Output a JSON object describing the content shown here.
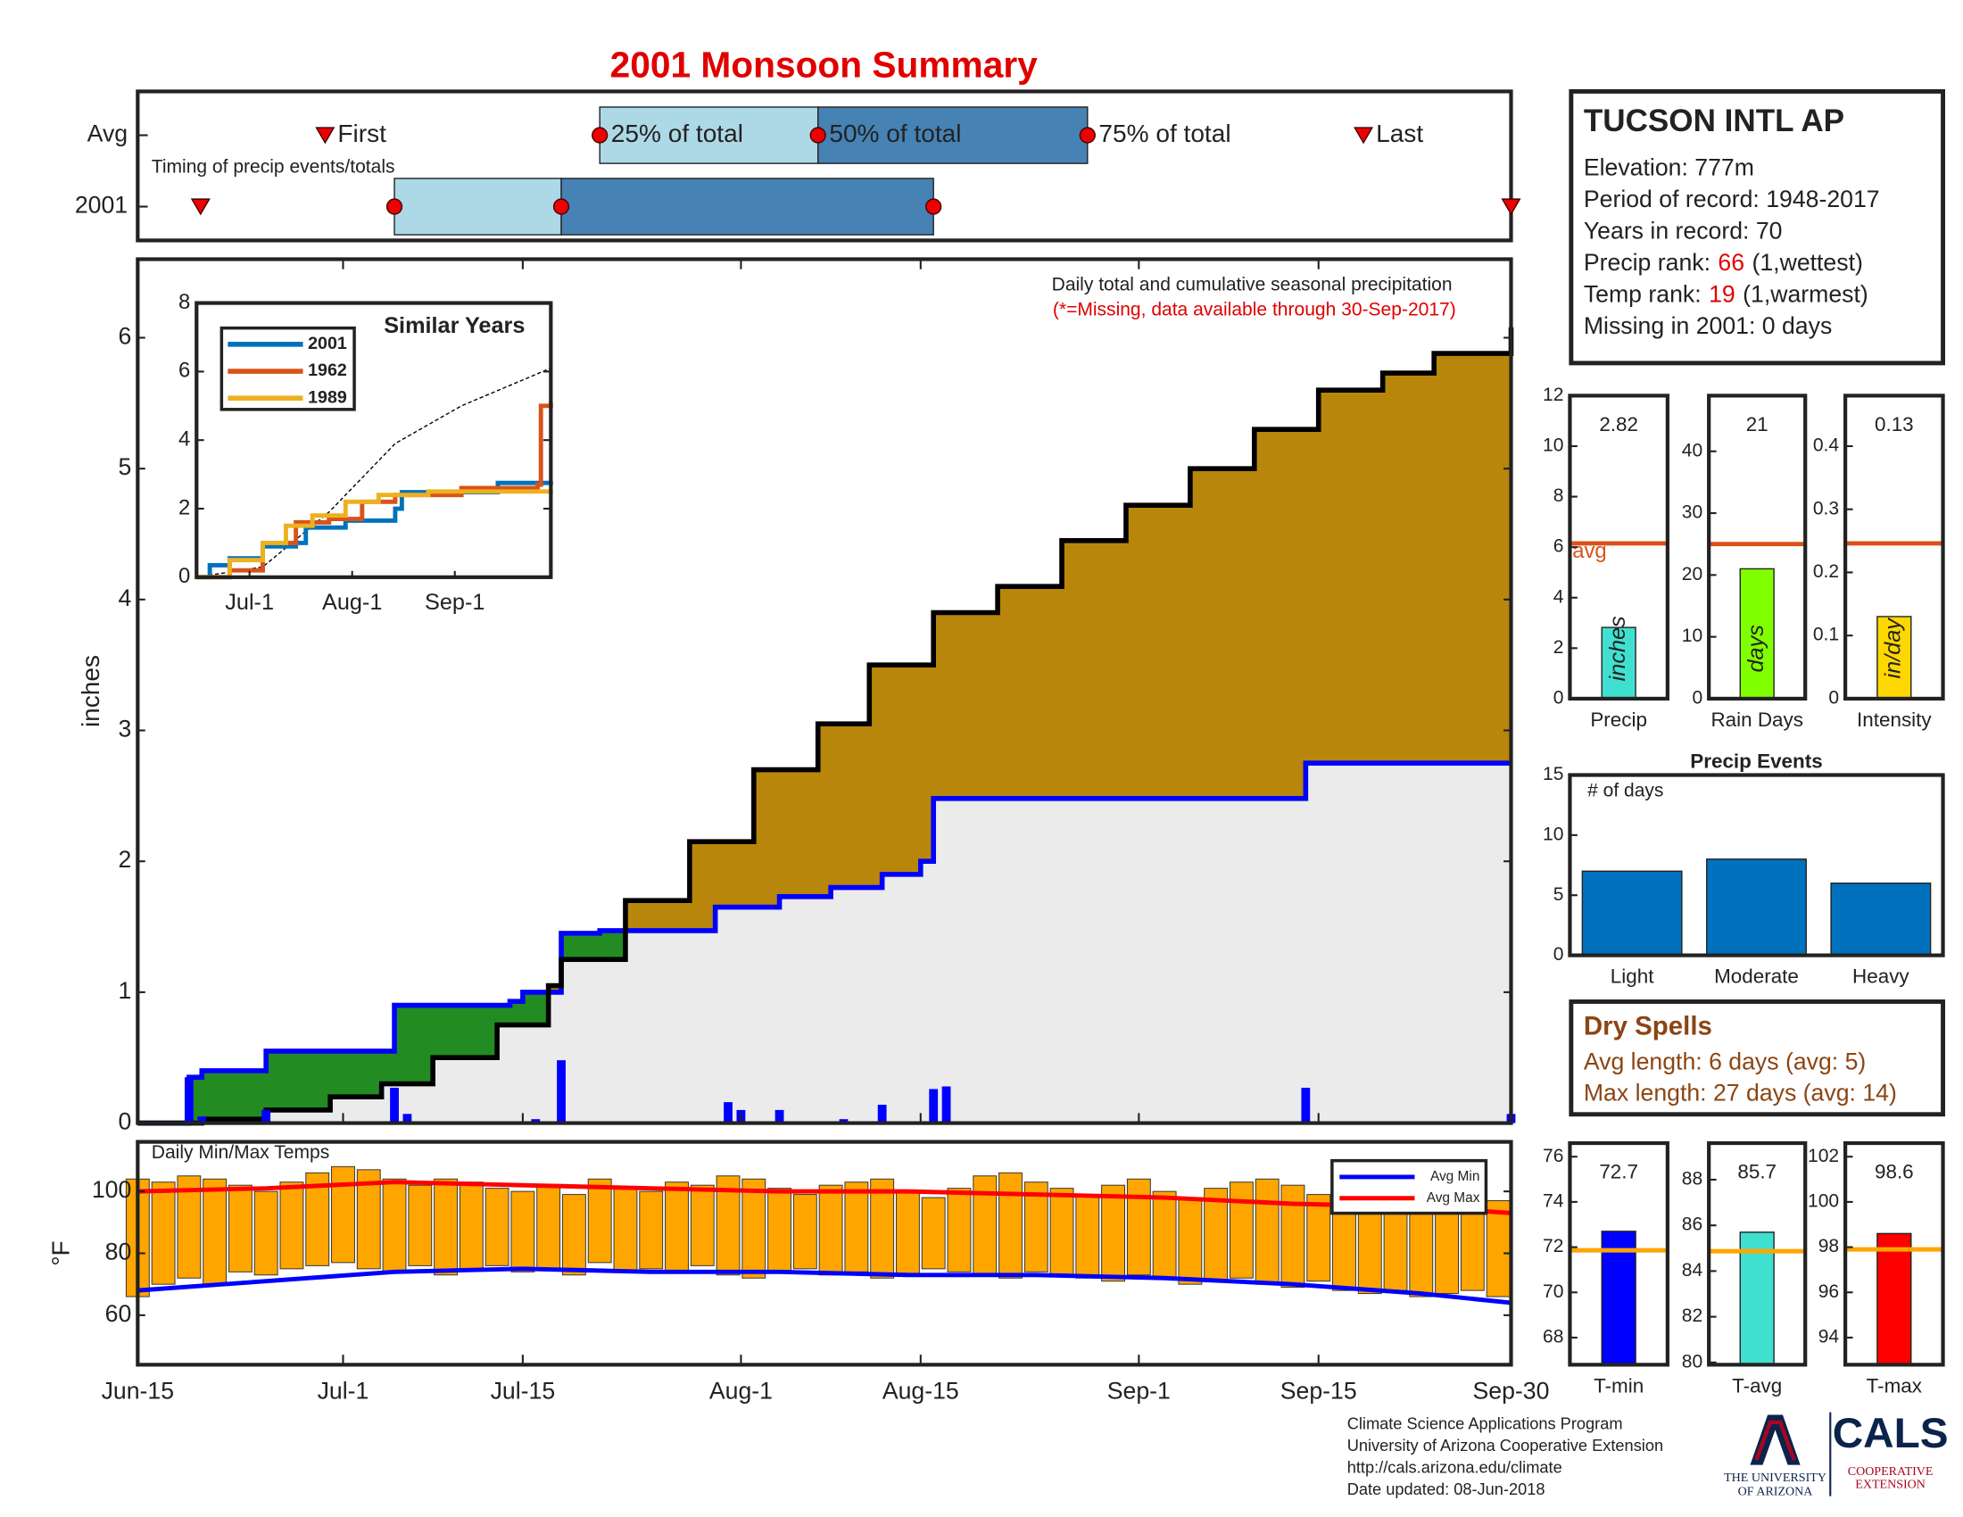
{
  "title": "2001 Monsoon Summary",
  "chart_data": [
    {
      "type": "timeline",
      "annotation": "Timing of precip events/totals",
      "xlim": [
        0,
        107
      ],
      "light_color": "#add8e6",
      "dark_color": "#4682b4",
      "marker_color": "#ee0000",
      "marker_labels": {
        "first": "First",
        "p25": "25% of total",
        "p50": "50% of total",
        "p75": "75% of total",
        "last": "Last"
      },
      "rows": [
        {
          "label": "Avg",
          "first": 14.6,
          "p25": 36,
          "p50": 53,
          "p75": 74,
          "last": 95.5
        },
        {
          "label": "2001",
          "first": 4.9,
          "p25": 20,
          "p50": 33,
          "p75": 62,
          "last": 107
        }
      ]
    },
    {
      "type": "area",
      "annotation": "Daily total and cumulative seasonal precipitation",
      "note": "(*=Missing, data available through 30-Sep-2017)",
      "ylabel": "inches",
      "xlim": [
        0,
        107
      ],
      "ylim": [
        0,
        6.6
      ],
      "yticks": [
        0,
        1,
        2,
        3,
        4,
        5,
        6
      ],
      "surplus_color": "#228b22",
      "base_color": "#ebebeb",
      "average": {
        "color": "#b8860b",
        "x": [
          0,
          5,
          10,
          15,
          19,
          23,
          28,
          32,
          33,
          38,
          43,
          48,
          53,
          57,
          62,
          67,
          72,
          77,
          82,
          87,
          92,
          97,
          101,
          107
        ],
        "values": [
          0,
          0.03,
          0.1,
          0.2,
          0.3,
          0.5,
          0.75,
          1.05,
          1.25,
          1.7,
          2.15,
          2.7,
          3.05,
          3.5,
          3.9,
          4.1,
          4.45,
          4.72,
          5.0,
          5.3,
          5.6,
          5.73,
          5.88,
          6.08
        ]
      },
      "season": {
        "color": "#0000ff",
        "x": [
          0,
          4,
          5,
          10,
          20,
          29,
          30,
          33,
          36,
          45,
          50,
          54,
          58,
          61,
          62,
          91,
          107
        ],
        "values": [
          0,
          0.35,
          0.4,
          0.55,
          0.9,
          0.93,
          1.0,
          1.45,
          1.47,
          1.65,
          1.73,
          1.8,
          1.9,
          2.0,
          2.48,
          2.75,
          2.75
        ]
      },
      "daily": {
        "color": "#0000ff",
        "x": [
          4,
          5,
          10,
          20,
          21,
          31,
          33,
          46,
          47,
          50,
          55,
          58,
          62,
          63,
          91,
          107
        ],
        "values": [
          0.35,
          0.05,
          0.1,
          0.27,
          0.07,
          0.03,
          0.48,
          0.16,
          0.1,
          0.1,
          0.03,
          0.14,
          0.26,
          0.28,
          0.27,
          0.07
        ]
      }
    },
    {
      "type": "line",
      "title": "Similar Years",
      "legend": "upper left",
      "xlim": [
        0,
        107
      ],
      "xticks": [
        {
          "value": 16,
          "label": "Jul-1"
        },
        {
          "value": 47,
          "label": "Aug-1"
        },
        {
          "value": 78,
          "label": "Sep-1"
        }
      ],
      "ylim": [
        0,
        8
      ],
      "yticks": [
        0,
        2,
        4,
        6,
        8
      ],
      "average": {
        "x": [
          0,
          20,
          40,
          60,
          80,
          107
        ],
        "values": [
          0,
          0.3,
          1.9,
          3.9,
          5.0,
          6.1
        ]
      },
      "series": [
        {
          "name": "2001",
          "color": "#0072bd",
          "x": [
            0,
            4,
            10,
            20,
            30,
            33,
            45,
            60,
            62,
            91,
            107
          ],
          "values": [
            0,
            0.35,
            0.55,
            0.9,
            1.0,
            1.45,
            1.65,
            2.0,
            2.48,
            2.75,
            2.8
          ]
        },
        {
          "name": "1962",
          "color": "#d95319",
          "x": [
            0,
            10,
            20,
            30,
            40,
            50,
            60,
            80,
            103,
            104,
            107
          ],
          "values": [
            0,
            0.2,
            1.0,
            1.6,
            1.7,
            2.2,
            2.4,
            2.6,
            2.7,
            5.0,
            5.1
          ]
        },
        {
          "name": "1989",
          "color": "#edb120",
          "x": [
            0,
            10,
            20,
            27,
            35,
            45,
            55,
            70,
            107
          ],
          "values": [
            0,
            0.5,
            1.0,
            1.5,
            1.8,
            2.2,
            2.4,
            2.5,
            2.55
          ]
        }
      ]
    },
    {
      "type": "bar",
      "categories": [
        "Precip"
      ],
      "values": [
        2.82
      ],
      "color": "#40e0d0",
      "avg": 6.15,
      "avg_label": "avg",
      "avg_color": "#d95319",
      "unit_label": "inches",
      "ylim": [
        0,
        12
      ],
      "yticks": [
        0,
        2,
        4,
        6,
        8,
        10,
        12
      ]
    },
    {
      "type": "bar",
      "categories": [
        "Rain Days"
      ],
      "values": [
        21
      ],
      "color": "#80ff00",
      "avg": 25,
      "avg_color": "#d95319",
      "unit_label": "days",
      "ylim": [
        0,
        49
      ],
      "yticks": [
        0,
        10,
        20,
        30,
        40
      ]
    },
    {
      "type": "bar",
      "categories": [
        "Intensity"
      ],
      "values": [
        0.13
      ],
      "color": "#ffd700",
      "avg": 0.246,
      "avg_color": "#d95319",
      "unit_label": "in/day",
      "ylim": [
        0,
        0.48
      ],
      "yticks": [
        0,
        0.1,
        0.2,
        0.3,
        0.4
      ]
    },
    {
      "type": "bar",
      "title": "Precip Events",
      "annotation": "# of days",
      "categories": [
        "Light",
        "Moderate",
        "Heavy"
      ],
      "values": [
        7,
        8,
        6
      ],
      "color": "#0072bd",
      "ylim": [
        0,
        15
      ],
      "yticks": [
        0,
        5,
        10,
        15
      ]
    },
    {
      "type": "range",
      "annotation": "Daily Min/Max Temps",
      "ylabel": "°F",
      "color": "#ffa500",
      "legend": "upper right",
      "xlim": [
        0,
        107
      ],
      "xticks": [
        {
          "value": 0,
          "label": "Jun-15"
        },
        {
          "value": 16,
          "label": "Jul-1"
        },
        {
          "value": 30,
          "label": "Jul-15"
        },
        {
          "value": 47,
          "label": "Aug-1"
        },
        {
          "value": 61,
          "label": "Aug-15"
        },
        {
          "value": 78,
          "label": "Sep-1"
        },
        {
          "value": 92,
          "label": "Sep-15"
        },
        {
          "value": 107,
          "label": "Sep-30"
        }
      ],
      "ylim": [
        44,
        116
      ],
      "yticks": [
        60,
        80,
        100
      ],
      "x": [
        0,
        2,
        4,
        6,
        8,
        10,
        12,
        14,
        16,
        18,
        20,
        22,
        24,
        26,
        28,
        30,
        32,
        34,
        36,
        38,
        40,
        42,
        44,
        46,
        48,
        50,
        52,
        54,
        56,
        58,
        60,
        62,
        64,
        66,
        68,
        70,
        72,
        74,
        76,
        78,
        80,
        82,
        84,
        86,
        88,
        90,
        92,
        94,
        96,
        98,
        100,
        102,
        104,
        106
      ],
      "high": [
        104,
        103,
        105,
        104,
        102,
        100,
        103,
        106,
        108,
        107,
        104,
        102,
        104,
        103,
        101,
        100,
        102,
        99,
        104,
        101,
        100,
        103,
        102,
        105,
        104,
        101,
        99,
        102,
        103,
        104,
        100,
        98,
        101,
        105,
        106,
        103,
        101,
        99,
        102,
        104,
        100,
        98,
        101,
        103,
        104,
        102,
        99,
        97,
        100,
        101,
        99,
        96,
        98,
        97
      ],
      "low": [
        66,
        70,
        72,
        70,
        74,
        73,
        75,
        76,
        77,
        75,
        74,
        76,
        73,
        75,
        76,
        74,
        75,
        73,
        77,
        74,
        75,
        74,
        76,
        73,
        72,
        74,
        75,
        73,
        74,
        72,
        73,
        75,
        74,
        73,
        72,
        74,
        73,
        72,
        71,
        73,
        72,
        70,
        71,
        72,
        70,
        69,
        71,
        68,
        67,
        68,
        66,
        67,
        68,
        66
      ],
      "lines": [
        {
          "name": "Avg Min",
          "color": "#0000ff",
          "x": [
            0,
            10,
            20,
            30,
            40,
            50,
            60,
            70,
            80,
            90,
            100,
            107
          ],
          "values": [
            68,
            71,
            74,
            75,
            74,
            74,
            73,
            73,
            72,
            70,
            67,
            64
          ]
        },
        {
          "name": "Avg Max",
          "color": "#ff0000",
          "x": [
            0,
            10,
            20,
            30,
            40,
            50,
            60,
            70,
            80,
            90,
            100,
            107
          ],
          "values": [
            100,
            101,
            103,
            102,
            101,
            100,
            100,
            99,
            98,
            96,
            95,
            93
          ]
        }
      ]
    },
    {
      "type": "bar",
      "categories": [
        "T-min"
      ],
      "values": [
        72.7
      ],
      "color": "#0000ff",
      "avg": 71.86,
      "avg_color": "#ffa500",
      "ylim": [
        66.8,
        76.6
      ],
      "yticks": [
        68,
        70,
        72,
        74,
        76
      ]
    },
    {
      "type": "bar",
      "categories": [
        "T-avg"
      ],
      "values": [
        85.7
      ],
      "color": "#40e0d0",
      "avg": 84.87,
      "avg_color": "#ffa500",
      "ylim": [
        79.9,
        89.6
      ],
      "yticks": [
        80,
        82,
        84,
        86,
        88
      ]
    },
    {
      "type": "bar",
      "categories": [
        "T-max"
      ],
      "values": [
        98.6
      ],
      "color": "#ff0000",
      "avg": 97.9,
      "avg_color": "#ffa500",
      "ylim": [
        92.8,
        102.6
      ],
      "yticks": [
        94,
        96,
        98,
        100,
        102
      ]
    }
  ],
  "station": {
    "name": "TUCSON INTL AP",
    "lines": [
      {
        "text": "Elevation: 777m"
      },
      {
        "text": "Period of record: 1948-2017"
      },
      {
        "text": "Years in record: 70"
      },
      {
        "text": "Precip rank:",
        "value": "66",
        "suffix": "(1,wettest)"
      },
      {
        "text": "Temp rank:",
        "value": "19",
        "suffix": "(1,warmest)"
      },
      {
        "text": "Missing in 2001: 0 days"
      }
    ]
  },
  "dry_spells": {
    "title": "Dry Spells",
    "lines": [
      "Avg length: 6 days (avg: 5)",
      "Max length: 27 days (avg: 14)"
    ]
  },
  "footer": {
    "lines": [
      "Climate Science Applications Program",
      "University of Arizona Cooperative Extension",
      "http://cals.arizona.edu/climate",
      "Date updated: 08-Jun-2018"
    ],
    "logo_ua": [
      "THE UNIVERSITY",
      "OF ARIZONA"
    ],
    "logo_cals": "CALS",
    "logo_ext": [
      "COOPERATIVE",
      "EXTENSION"
    ]
  }
}
